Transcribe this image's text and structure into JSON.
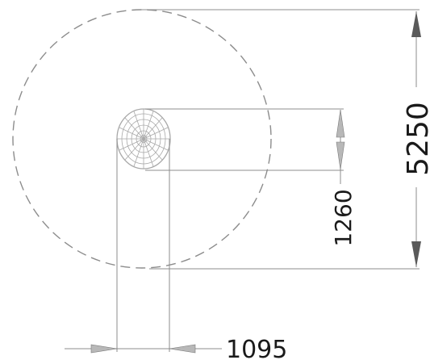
{
  "drawing": {
    "colors": {
      "line": "#8c8c8c",
      "arrow": "#5a5a5a",
      "arrow_light": "#b8b8b8",
      "text": "#1a1a1a",
      "net": "#a8a8a8"
    },
    "icons": {
      "arrow": "triangle-arrow-icon",
      "net_top_view": "spider-net-top-view-icon"
    },
    "dimensions": {
      "overall": "5250",
      "inner_height": "1260",
      "inner_width": "1095"
    }
  }
}
